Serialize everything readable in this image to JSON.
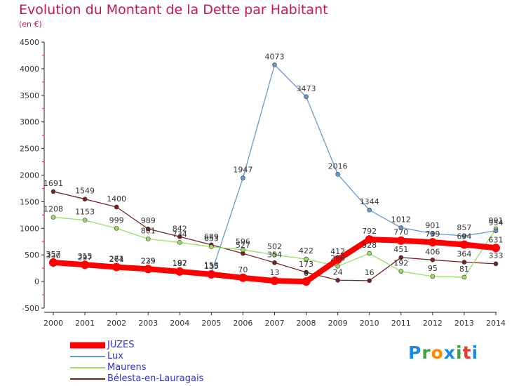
{
  "title": "Evolution du Montant de la Dette par Habitant",
  "unit": "(en €)",
  "logo": {
    "text": "Proxiti",
    "letter_colors": [
      "#1e88e5",
      "#43a047",
      "#fb8c00",
      "#1e88e5",
      "#43a047",
      "#e53935",
      "#1e88e5"
    ]
  },
  "chart_data": {
    "type": "line",
    "title": "Evolution du Montant de la Dette par Habitant",
    "ylabel": "(en €)",
    "xlabel": "",
    "x": [
      "2000",
      "2001",
      "2002",
      "2003",
      "2004",
      "2005",
      "2006",
      "2007",
      "2008",
      "2009",
      "2010",
      "2011",
      "2012",
      "2013",
      "2014"
    ],
    "ylim": [
      -500,
      4500
    ],
    "yticks": [
      -500,
      0,
      500,
      1000,
      1500,
      2000,
      2500,
      3000,
      3500,
      4000,
      4500
    ],
    "grid": false,
    "legend_position": "bottom-left",
    "series": [
      {
        "name": "JUZES",
        "color": "#ff0000",
        "highlight": true,
        "values": [
          357,
          315,
          271,
          235,
          187,
          135,
          70,
          13,
          0,
          412,
          792,
          770,
          739,
          694,
          631
        ]
      },
      {
        "name": "Lux",
        "color": "#6699cc",
        "highlight": false,
        "values": [
          330,
          297,
          264,
          229,
          192,
          153,
          1947,
          4073,
          3473,
          2016,
          1344,
          1012,
          901,
          857,
          954
        ]
      },
      {
        "name": "Maurens",
        "color": "#99dd66",
        "highlight": false,
        "values": [
          1208,
          1153,
          999,
          801,
          734,
          653,
          596,
          502,
          422,
          286,
          528,
          192,
          95,
          81,
          991
        ]
      },
      {
        "name": "Bélesta-en-Lauragais",
        "color": "#772222",
        "highlight": false,
        "values": [
          1691,
          1549,
          1400,
          989,
          842,
          689,
          527,
          354,
          173,
          24,
          16,
          451,
          406,
          364,
          333
        ]
      }
    ]
  }
}
